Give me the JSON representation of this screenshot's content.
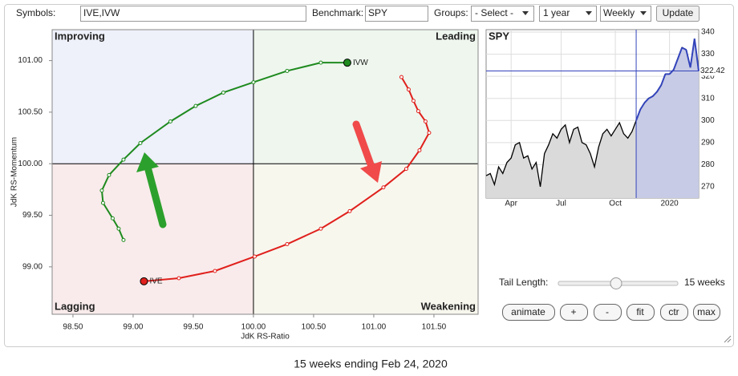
{
  "toolbar": {
    "symbols_label": "Symbols:",
    "symbols": "IVE,IVW",
    "benchmark_label": "Benchmark:",
    "benchmark": "SPY",
    "groups_label": "Groups:",
    "groups": "- Select -",
    "period": "1 year",
    "frequency": "Weekly",
    "update": "Update"
  },
  "rrg": {
    "type": "rrg",
    "xlabel": "JdK RS-Ratio",
    "ylabel": "JdK RS-Momentum",
    "quadrants": [
      "Improving",
      "Leading",
      "Lagging",
      "Weakening"
    ],
    "center": [
      100,
      100
    ],
    "xlim": [
      98.327,
      101.867
    ],
    "ylim": [
      98.54,
      101.3
    ],
    "xticks": [
      {
        "value": 98.5,
        "label": "98.50"
      },
      {
        "value": 99,
        "label": "99.00"
      },
      {
        "value": 99.5,
        "label": "99.50"
      },
      {
        "value": 100,
        "label": "100.00"
      },
      {
        "value": 100.5,
        "label": "100.50"
      },
      {
        "value": 101,
        "label": "101.00"
      },
      {
        "value": 101.5,
        "label": "101.50"
      }
    ],
    "yticks": [
      {
        "value": 99,
        "label": "99.00"
      },
      {
        "value": 99.5,
        "label": "99.50"
      },
      {
        "value": 100,
        "label": "100.00"
      },
      {
        "value": 100.5,
        "label": "100.50"
      },
      {
        "value": 101,
        "label": "101.00"
      }
    ],
    "series": [
      {
        "name": "IVW",
        "color": "#1e8a1e",
        "x": [
          98.92,
          98.88,
          98.83,
          98.75,
          98.74,
          98.8,
          98.92,
          99.06,
          99.31,
          99.52,
          99.75,
          100.0,
          100.28,
          100.56,
          100.78
        ],
        "y": [
          99.26,
          99.37,
          99.47,
          99.62,
          99.74,
          99.89,
          100.04,
          100.2,
          100.41,
          100.56,
          100.69,
          100.79,
          100.9,
          100.98,
          100.98
        ]
      },
      {
        "name": "IVE",
        "color": "#e0201c",
        "x": [
          101.23,
          101.29,
          101.33,
          101.37,
          101.43,
          101.46,
          101.38,
          101.27,
          101.08,
          100.8,
          100.56,
          100.28,
          100.01,
          99.68,
          99.38,
          99.09
        ],
        "y": [
          100.84,
          100.72,
          100.61,
          100.51,
          100.41,
          100.3,
          100.13,
          99.95,
          99.77,
          99.54,
          99.37,
          99.22,
          99.1,
          98.96,
          98.89,
          98.86
        ]
      }
    ]
  },
  "price_chart": {
    "type": "line",
    "title": "SPY",
    "color": "#000000",
    "tail_color": "#3344bb",
    "highlight_from": 36,
    "values": [
      275,
      276,
      271,
      279,
      276,
      281,
      283,
      289,
      290,
      283,
      284,
      278,
      281,
      270,
      285,
      289,
      294,
      292,
      296,
      298,
      290,
      296,
      297,
      290,
      289,
      285,
      279,
      288,
      294,
      296,
      293,
      296,
      299,
      294,
      292,
      295,
      300,
      305,
      308,
      310,
      311,
      313,
      316,
      321,
      321,
      323,
      328,
      333,
      332,
      324,
      337,
      322.42
    ],
    "xlim": [
      0,
      51
    ],
    "ylim": [
      264.9,
      341.1
    ],
    "xticks": [
      {
        "value": 6,
        "label": "Apr"
      },
      {
        "value": 18,
        "label": "Jul"
      },
      {
        "value": 31,
        "label": "Oct"
      },
      {
        "value": 44,
        "label": "2020"
      }
    ],
    "yticks": [
      270,
      280,
      290,
      300,
      310,
      320,
      330,
      340
    ]
  },
  "controls": {
    "tail_label": "Tail Length:",
    "tail_value": "15 weeks",
    "buttons": [
      "animate",
      "+",
      "-",
      "fit",
      "ctr",
      "max"
    ]
  },
  "caption": "15 weeks ending Feb 24, 2020"
}
